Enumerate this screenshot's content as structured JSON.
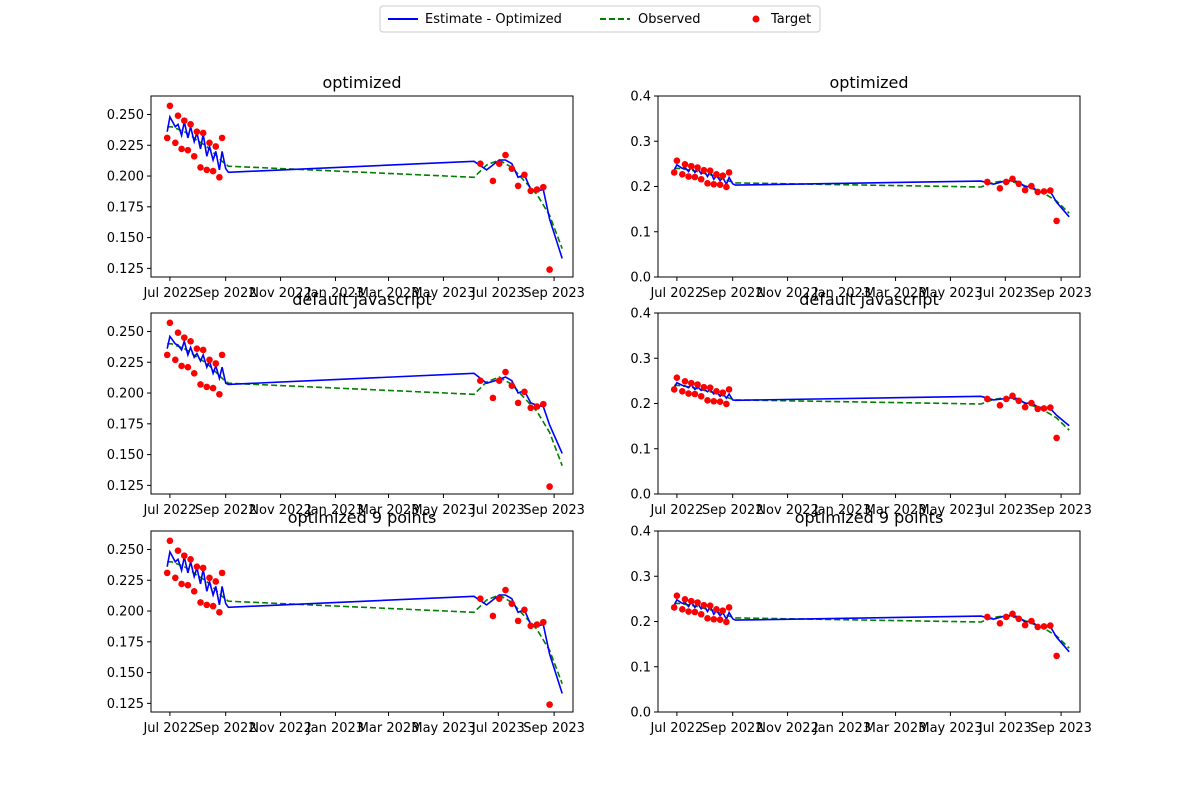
{
  "legend": {
    "items": [
      {
        "label": "Estimate - Optimized",
        "color": "#0000ff",
        "style": "solid"
      },
      {
        "label": "Observed",
        "color": "#008000",
        "style": "dashed"
      },
      {
        "label": "Target",
        "color": "#ff0000",
        "style": "marker"
      }
    ]
  },
  "chart_data": [
    {
      "type": "line",
      "title": "optimized",
      "xlabel": "",
      "ylabel": "",
      "ylim": [
        0.118,
        0.265
      ],
      "yticks": [
        0.125,
        0.15,
        0.175,
        0.2,
        0.225,
        0.25
      ],
      "ytick_labels": [
        "0.125",
        "0.150",
        "0.175",
        "0.200",
        "0.225",
        "0.250"
      ],
      "xticks": [
        "Jul 2022",
        "Sep 2022",
        "Nov 2022",
        "Jan 2023",
        "Mar 2023",
        "May 2023",
        "Jul 2023",
        "Sep 2023"
      ],
      "grid": false,
      "legend": "top-center (figure)",
      "series_ref": "optimized",
      "observed_ref": "observed",
      "target_ref": "target"
    },
    {
      "type": "line",
      "title": "optimized",
      "xlabel": "",
      "ylabel": "",
      "ylim": [
        0.0,
        0.4
      ],
      "yticks": [
        0.0,
        0.1,
        0.2,
        0.3,
        0.4
      ],
      "ytick_labels": [
        "0.0",
        "0.1",
        "0.2",
        "0.3",
        "0.4"
      ],
      "xticks": [
        "Jul 2022",
        "Sep 2022",
        "Nov 2022",
        "Jan 2023",
        "Mar 2023",
        "May 2023",
        "Jul 2023",
        "Sep 2023"
      ],
      "grid": false,
      "series_ref": "optimized",
      "observed_ref": "observed",
      "target_ref": "target"
    },
    {
      "type": "line",
      "title": "default javascript",
      "xlabel": "",
      "ylabel": "",
      "ylim": [
        0.118,
        0.265
      ],
      "yticks": [
        0.125,
        0.15,
        0.175,
        0.2,
        0.225,
        0.25
      ],
      "ytick_labels": [
        "0.125",
        "0.150",
        "0.175",
        "0.200",
        "0.225",
        "0.250"
      ],
      "xticks": [
        "Jul 2022",
        "Sep 2022",
        "Nov 2022",
        "Jan 2023",
        "Mar 2023",
        "May 2023",
        "Jul 2023",
        "Sep 2023"
      ],
      "grid": false,
      "series_ref": "default",
      "observed_ref": "observed",
      "target_ref": "target"
    },
    {
      "type": "line",
      "title": "default javascript",
      "xlabel": "",
      "ylabel": "",
      "ylim": [
        0.0,
        0.4
      ],
      "yticks": [
        0.0,
        0.1,
        0.2,
        0.3,
        0.4
      ],
      "ytick_labels": [
        "0.0",
        "0.1",
        "0.2",
        "0.3",
        "0.4"
      ],
      "xticks": [
        "Jul 2022",
        "Sep 2022",
        "Nov 2022",
        "Jan 2023",
        "Mar 2023",
        "May 2023",
        "Jul 2023",
        "Sep 2023"
      ],
      "grid": false,
      "series_ref": "default",
      "observed_ref": "observed",
      "target_ref": "target"
    },
    {
      "type": "line",
      "title": "optimized 9 points",
      "xlabel": "",
      "ylabel": "",
      "ylim": [
        0.118,
        0.265
      ],
      "yticks": [
        0.125,
        0.15,
        0.175,
        0.2,
        0.225,
        0.25
      ],
      "ytick_labels": [
        "0.125",
        "0.150",
        "0.175",
        "0.200",
        "0.225",
        "0.250"
      ],
      "xticks": [
        "Jul 2022",
        "Sep 2022",
        "Nov 2022",
        "Jan 2023",
        "Mar 2023",
        "May 2023",
        "Jul 2023",
        "Sep 2023"
      ],
      "grid": false,
      "series_ref": "optimized",
      "observed_ref": "observed",
      "target_ref": "target"
    },
    {
      "type": "line",
      "title": "optimized 9 points",
      "xlabel": "",
      "ylabel": "",
      "ylim": [
        0.0,
        0.4
      ],
      "yticks": [
        0.0,
        0.1,
        0.2,
        0.3,
        0.4
      ],
      "ytick_labels": [
        "0.0",
        "0.1",
        "0.2",
        "0.3",
        "0.4"
      ],
      "xticks": [
        "Jul 2022",
        "Sep 2022",
        "Nov 2022",
        "Jan 2023",
        "Mar 2023",
        "May 2023",
        "Jul 2023",
        "Sep 2023"
      ],
      "grid": false,
      "series_ref": "optimized",
      "observed_ref": "observed",
      "target_ref": "target"
    }
  ],
  "series_values": {
    "target": {
      "name": "Target",
      "color": "#ff0000",
      "x": [
        "2022-06-28",
        "2022-07-01",
        "2022-07-07",
        "2022-07-10",
        "2022-07-14",
        "2022-07-17",
        "2022-07-21",
        "2022-07-24",
        "2022-07-28",
        "2022-07-31",
        "2022-08-04",
        "2022-08-07",
        "2022-08-11",
        "2022-08-14",
        "2022-08-18",
        "2022-08-21",
        "2022-08-25",
        "2022-08-28",
        "2022-09-01",
        "2022-09-04",
        "2022-06-28"
      ],
      "y": [
        0.231,
        0.257,
        0.227,
        0.249,
        0.222,
        0.245,
        0.221,
        0.242,
        0.216,
        0.236,
        0.207,
        0.235,
        0.205,
        0.227,
        0.204,
        0.224,
        0.199,
        0.231,
        0.231,
        0.231,
        0.231
      ]
    },
    "target_late": {
      "x": [
        "2023-06-11",
        "2023-06-25",
        "2023-07-02",
        "2023-07-09",
        "2023-07-16",
        "2023-07-23",
        "2023-07-30",
        "2023-08-06",
        "2023-08-13",
        "2023-08-20",
        "2023-08-27",
        "2023-09-10"
      ],
      "y": [
        0.21,
        0.196,
        0.21,
        0.217,
        0.206,
        0.192,
        0.201,
        0.188,
        0.189,
        0.191,
        0.124,
        0.124
      ]
    },
    "observed": {
      "name": "Observed",
      "color": "#008000",
      "x": [
        "2022-06-28",
        "2022-07-03",
        "2022-07-10",
        "2022-07-17",
        "2022-07-24",
        "2022-07-31",
        "2022-08-07",
        "2022-08-14",
        "2022-08-21",
        "2022-08-28",
        "2022-09-04",
        "2023-06-04",
        "2023-06-18",
        "2023-07-02",
        "2023-07-16",
        "2023-07-30",
        "2023-08-13",
        "2023-08-27",
        "2023-09-10"
      ],
      "y": [
        0.24,
        0.24,
        0.238,
        0.236,
        0.233,
        0.229,
        0.226,
        0.222,
        0.217,
        0.212,
        0.208,
        0.199,
        0.209,
        0.213,
        0.207,
        0.196,
        0.185,
        0.168,
        0.141
      ]
    },
    "optimized": {
      "name": "Estimate - Optimized",
      "color": "#0000ff",
      "x": [
        "2022-06-28",
        "2022-07-01",
        "2022-07-07",
        "2022-07-10",
        "2022-07-14",
        "2022-07-17",
        "2022-07-21",
        "2022-07-24",
        "2022-07-28",
        "2022-07-31",
        "2022-08-04",
        "2022-08-07",
        "2022-08-11",
        "2022-08-14",
        "2022-08-18",
        "2022-08-21",
        "2022-08-25",
        "2022-08-28",
        "2022-09-01",
        "2022-09-04",
        "2023-06-04",
        "2023-06-18",
        "2023-07-02",
        "2023-07-09",
        "2023-07-16",
        "2023-07-23",
        "2023-07-30",
        "2023-08-06",
        "2023-08-13",
        "2023-08-20",
        "2023-08-27",
        "2023-09-10"
      ],
      "y": [
        0.236,
        0.248,
        0.24,
        0.242,
        0.233,
        0.244,
        0.231,
        0.24,
        0.228,
        0.235,
        0.222,
        0.234,
        0.216,
        0.224,
        0.213,
        0.22,
        0.205,
        0.22,
        0.206,
        0.203,
        0.212,
        0.205,
        0.213,
        0.213,
        0.21,
        0.199,
        0.201,
        0.189,
        0.188,
        0.189,
        0.165,
        0.133
      ]
    },
    "default": {
      "name": "Estimate - Optimized",
      "color": "#0000ff",
      "x": [
        "2022-06-28",
        "2022-07-01",
        "2022-07-07",
        "2022-07-10",
        "2022-07-14",
        "2022-07-17",
        "2022-07-21",
        "2022-07-24",
        "2022-07-28",
        "2022-07-31",
        "2022-08-04",
        "2022-08-07",
        "2022-08-11",
        "2022-08-14",
        "2022-08-18",
        "2022-08-21",
        "2022-08-25",
        "2022-08-28",
        "2022-09-01",
        "2022-09-04",
        "2023-06-04",
        "2023-06-18",
        "2023-07-02",
        "2023-07-09",
        "2023-07-16",
        "2023-07-23",
        "2023-07-30",
        "2023-08-06",
        "2023-08-13",
        "2023-08-20",
        "2023-08-27",
        "2023-09-10"
      ],
      "y": [
        0.236,
        0.246,
        0.24,
        0.239,
        0.235,
        0.242,
        0.231,
        0.237,
        0.229,
        0.232,
        0.226,
        0.231,
        0.221,
        0.226,
        0.216,
        0.222,
        0.212,
        0.221,
        0.208,
        0.207,
        0.216,
        0.208,
        0.211,
        0.213,
        0.21,
        0.2,
        0.202,
        0.192,
        0.19,
        0.189,
        0.174,
        0.151
      ]
    }
  }
}
